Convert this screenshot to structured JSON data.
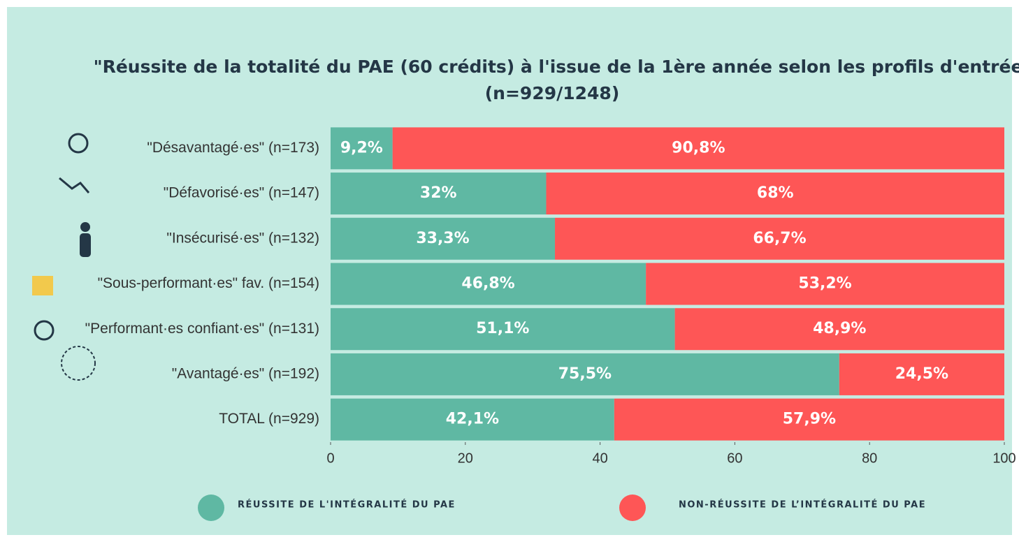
{
  "chart_data": {
    "type": "stacked-barh",
    "title": "\"Réussite de la totalité du PAE (60 crédits) à l'issue de la 1ère année selon les profils d'entrée\"",
    "subtitle": "(n=929/1248)",
    "categories": [
      "\"Désavantagé·es\" (n=173)",
      "\"Défavorisé·es\" (n=147)",
      "\"Insécurisé·es\" (n=132)",
      "\"Sous-performant·es\" fav. (n=154)",
      "\"Performant·es confiant·es\" (n=131)",
      "\"Avantagé·es\" (n=192)",
      "TOTAL (n=929)"
    ],
    "series": [
      {
        "name": "RÉUSSITE DE L'INTÉGRALITÉ DU PAE",
        "color": "#5fb8a3",
        "values": [
          9.2,
          32,
          33.3,
          46.8,
          51.1,
          75.5,
          42.1
        ],
        "value_labels": [
          "9,2%",
          "32%",
          "33,3%",
          "46,8%",
          "51,1%",
          "75,5%",
          "42,1%"
        ]
      },
      {
        "name": "NON-RÉUSSITE DE L’INTÉGRALITÉ DU PAE",
        "color": "#fe5656",
        "values": [
          90.8,
          68,
          66.7,
          53.2,
          48.9,
          24.5,
          57.9
        ],
        "value_labels": [
          "90,8%",
          "68%",
          "66,7%",
          "53,2%",
          "48,9%",
          "24,5%",
          "57,9%"
        ]
      }
    ],
    "xlim": [
      0,
      100
    ],
    "xticks": [
      0,
      20,
      40,
      60,
      80,
      100
    ]
  }
}
